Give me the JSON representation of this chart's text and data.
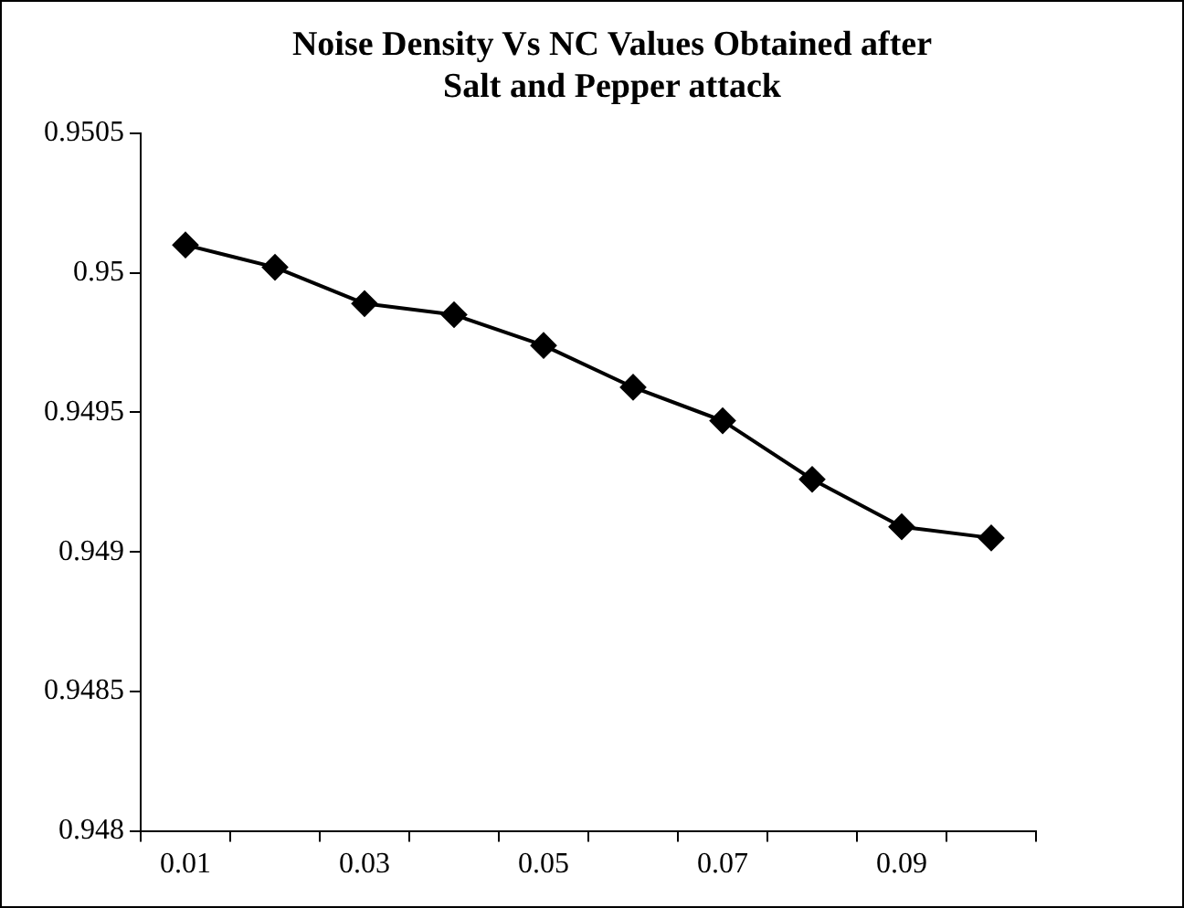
{
  "chart_data": {
    "type": "line",
    "title": "Noise Density Vs NC Values Obtained after Salt and Pepper attack",
    "categories": [
      "0.01",
      null,
      "0.03",
      null,
      "0.05",
      null,
      "0.07",
      null,
      "0.09",
      null
    ],
    "series": [
      {
        "color": "#000000",
        "values": [
          0.9501,
          0.95002,
          0.94989,
          0.94985,
          0.94974,
          0.94959,
          0.94947,
          0.94926,
          0.94909,
          0.94905
        ]
      }
    ],
    "ylim": [
      0.948,
      0.9505
    ],
    "yticks": [
      0.948,
      0.9485,
      0.949,
      0.9495,
      0.95,
      0.9505
    ],
    "grid": false,
    "legend": false,
    "marker": "diamond",
    "line_style": "solid"
  }
}
